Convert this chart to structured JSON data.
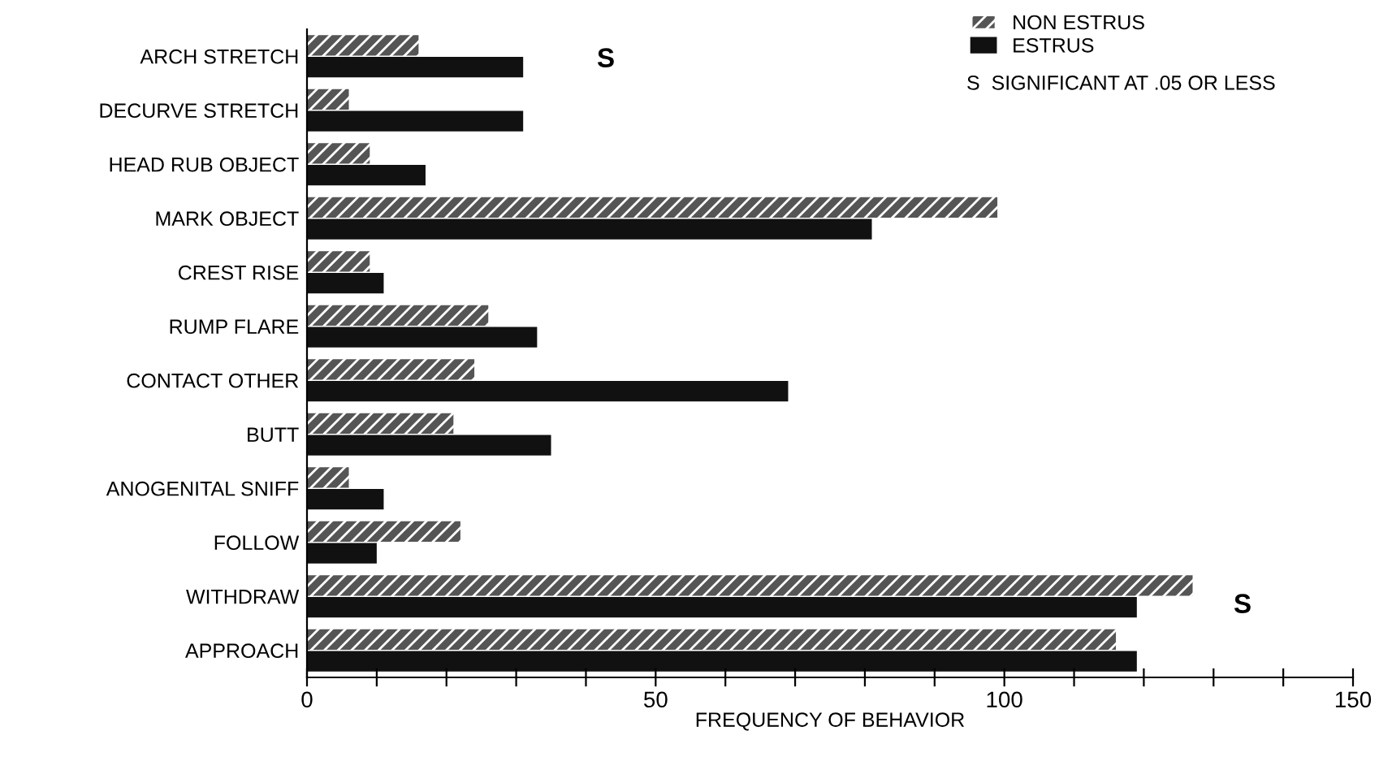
{
  "chart_data": {
    "type": "bar",
    "orientation": "horizontal",
    "xlabel": "FREQUENCY OF BEHAVIOR",
    "categories": [
      "ARCH STRETCH",
      "DECURVE STRETCH",
      "HEAD RUB OBJECT",
      "MARK OBJECT",
      "CREST RISE",
      "RUMP FLARE",
      "CONTACT OTHER",
      "BUTT",
      "ANOGENITAL SNIFF",
      "FOLLOW",
      "WITHDRAW",
      "APPROACH"
    ],
    "series": [
      {
        "name": "NON ESTRUS",
        "color": "#555555",
        "values": [
          16,
          6,
          9,
          99,
          9,
          26,
          24,
          21,
          6,
          22,
          127,
          116
        ]
      },
      {
        "name": "ESTRUS",
        "color": "#111111",
        "values": [
          31,
          31,
          17,
          81,
          11,
          33,
          69,
          35,
          11,
          10,
          119,
          119
        ]
      }
    ],
    "xlim": [
      0,
      150
    ],
    "xticks": [
      0,
      {
        "value": 10,
        "label": null
      },
      {
        "value": 20,
        "label": null
      },
      {
        "value": 30,
        "label": null
      },
      {
        "value": 40,
        "label": null
      },
      50,
      {
        "value": 60,
        "label": null
      },
      {
        "value": 70,
        "label": null
      },
      {
        "value": 80,
        "label": null
      },
      {
        "value": 90,
        "label": null
      },
      100,
      {
        "value": 110,
        "label": null
      },
      {
        "value": 120,
        "label": null
      },
      {
        "value": 130,
        "label": null
      },
      {
        "value": 140,
        "label": null
      },
      150
    ],
    "annotations": [
      "S",
      "S",
      "S  SIGNIFICANT AT .05 OR LESS"
    ],
    "legend": "top right",
    "grid": false
  }
}
